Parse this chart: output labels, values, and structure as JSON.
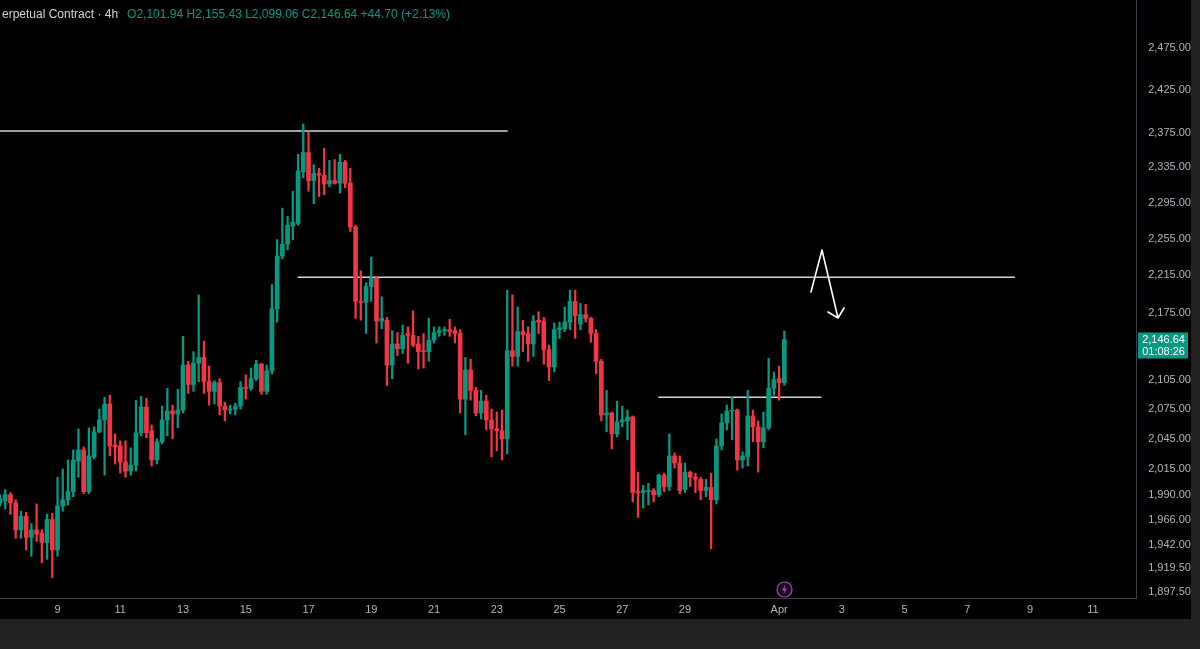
{
  "chart_data": {
    "type": "candlestick",
    "title": "erpetual Contract · 4h",
    "subtitle": "O2,101.94 H2,155.43 L2,099.06 C2,146.64 +44.70 (+2.13%)",
    "x": [
      "--03-07T04:00",
      "--03-07T08:00",
      "--03-07T12:00",
      "--03-07T16:00",
      "--03-07T20:00",
      "--03-08T00:00",
      "--03-08T04:00",
      "--03-08T08:00",
      "--03-08T12:00",
      "--03-08T16:00",
      "--03-08T20:00",
      "--03-09T00:00",
      "--03-09T04:00",
      "--03-09T08:00",
      "--03-09T12:00",
      "--03-09T16:00",
      "--03-09T20:00",
      "--03-10T00:00",
      "--03-10T04:00",
      "--03-10T08:00",
      "--03-10T12:00",
      "--03-10T16:00",
      "--03-10T20:00",
      "--03-11T00:00",
      "--03-11T04:00",
      "--03-11T08:00",
      "--03-11T12:00",
      "--03-11T16:00",
      "--03-11T20:00",
      "--03-12T00:00",
      "--03-12T04:00",
      "--03-12T08:00",
      "--03-12T12:00",
      "--03-12T16:00",
      "--03-12T20:00",
      "--03-13T00:00",
      "--03-13T04:00",
      "--03-13T08:00",
      "--03-13T12:00",
      "--03-13T16:00",
      "--03-13T20:00",
      "--03-14T00:00",
      "--03-14T04:00",
      "--03-14T08:00",
      "--03-14T12:00",
      "--03-14T16:00",
      "--03-14T20:00",
      "--03-15T00:00",
      "--03-15T04:00",
      "--03-15T08:00",
      "--03-15T12:00",
      "--03-15T16:00",
      "--03-15T20:00",
      "--03-16T00:00",
      "--03-16T04:00",
      "--03-16T08:00",
      "--03-16T12:00",
      "--03-16T16:00",
      "--03-16T20:00",
      "--03-17T00:00",
      "--03-17T04:00",
      "--03-17T08:00",
      "--03-17T12:00",
      "--03-17T16:00",
      "--03-17T20:00",
      "--03-18T00:00",
      "--03-18T04:00",
      "--03-18T08:00",
      "--03-18T12:00",
      "--03-18T16:00",
      "--03-18T20:00",
      "--03-19T00:00",
      "--03-19T04:00",
      "--03-19T08:00",
      "--03-19T12:00",
      "--03-19T16:00",
      "--03-19T20:00",
      "--03-20T00:00",
      "--03-20T04:00",
      "--03-20T08:00",
      "--03-20T12:00",
      "--03-20T16:00",
      "--03-20T20:00",
      "--03-21T00:00",
      "--03-21T04:00",
      "--03-21T08:00",
      "--03-21T12:00",
      "--03-21T16:00",
      "--03-21T20:00",
      "--03-22T00:00",
      "--03-22T04:00",
      "--03-22T08:00",
      "--03-22T12:00",
      "--03-22T16:00",
      "--03-22T20:00",
      "--03-23T00:00",
      "--03-23T04:00",
      "--03-23T08:00",
      "--03-23T12:00",
      "--03-23T16:00",
      "--03-23T20:00",
      "--03-24T00:00",
      "--03-24T04:00",
      "--03-24T08:00",
      "--03-24T12:00",
      "--03-24T16:00",
      "--03-24T20:00",
      "--03-25T00:00",
      "--03-25T04:00",
      "--03-25T08:00",
      "--03-25T12:00",
      "--03-25T16:00",
      "--03-25T20:00",
      "--03-26T00:00",
      "--03-26T04:00",
      "--03-26T08:00",
      "--03-26T12:00",
      "--03-26T16:00",
      "--03-26T20:00",
      "--03-27T00:00",
      "--03-27T04:00",
      "--03-27T08:00",
      "--03-27T12:00",
      "--03-27T16:00",
      "--03-27T20:00",
      "--03-28T00:00",
      "--03-28T04:00",
      "--03-28T08:00",
      "--03-28T12:00",
      "--03-28T16:00",
      "--03-28T20:00",
      "--03-29T00:00",
      "--03-29T04:00",
      "--03-29T08:00",
      "--03-29T12:00",
      "--03-29T16:00",
      "--03-29T20:00",
      "--03-30T00:00",
      "--03-30T04:00",
      "--03-30T08:00",
      "--03-30T12:00",
      "--03-30T16:00",
      "--03-30T20:00",
      "--03-31T00:00",
      "--03-31T04:00",
      "--03-31T08:00",
      "--03-31T12:00",
      "--03-31T16:00",
      "--03-31T20:00",
      "--04-01T00:00",
      "--04-01T04:00"
    ],
    "ohlc": [
      [
        1982,
        1990,
        1979,
        1986
      ],
      [
        1984,
        1995,
        1976,
        1990
      ],
      [
        1990,
        1992,
        1971,
        1982
      ],
      [
        1982,
        1985,
        1948,
        1956
      ],
      [
        1956,
        1974,
        1948,
        1969
      ],
      [
        1969,
        1973,
        1937,
        1949
      ],
      [
        1949,
        1962,
        1931,
        1956
      ],
      [
        1956,
        1981,
        1945,
        1952
      ],
      [
        1953,
        1956,
        1925,
        1944
      ],
      [
        1944,
        1971,
        1928,
        1966
      ],
      [
        1966,
        1972,
        1911,
        1937
      ],
      [
        1937,
        2007,
        1931,
        1979
      ],
      [
        1979,
        2015,
        1974,
        1985
      ],
      [
        1985,
        2024,
        1980,
        1993
      ],
      [
        1993,
        2034,
        1988,
        2024
      ],
      [
        2023,
        2055,
        2007,
        2034
      ],
      [
        2034,
        2037,
        1991,
        1993
      ],
      [
        1993,
        2056,
        1991,
        2028
      ],
      [
        2027,
        2057,
        2025,
        2052
      ],
      [
        2052,
        2075,
        2051,
        2064
      ],
      [
        2064,
        2087,
        2009,
        2080
      ],
      [
        2080,
        2089,
        2028,
        2038
      ],
      [
        2039,
        2050,
        2020,
        2037
      ],
      [
        2038,
        2043,
        2011,
        2022
      ],
      [
        2022,
        2043,
        2007,
        2013
      ],
      [
        2013,
        2036,
        2009,
        2019
      ],
      [
        2019,
        2084,
        2013,
        2051
      ],
      [
        2051,
        2088,
        2048,
        2077
      ],
      [
        2077,
        2086,
        2046,
        2051
      ],
      [
        2053,
        2059,
        2018,
        2024
      ],
      [
        2024,
        2045,
        2020,
        2042
      ],
      [
        2042,
        2078,
        2040,
        2064
      ],
      [
        2064,
        2096,
        2048,
        2073
      ],
      [
        2073,
        2079,
        2045,
        2070
      ],
      [
        2070,
        2095,
        2056,
        2074
      ],
      [
        2074,
        2150,
        2071,
        2120
      ],
      [
        2120,
        2124,
        2091,
        2100
      ],
      [
        2100,
        2134,
        2093,
        2122
      ],
      [
        2122,
        2194,
        2103,
        2128
      ],
      [
        2128,
        2145,
        2091,
        2103
      ],
      [
        2103,
        2119,
        2079,
        2093
      ],
      [
        2093,
        2104,
        2080,
        2102
      ],
      [
        2102,
        2106,
        2069,
        2078
      ],
      [
        2078,
        2082,
        2063,
        2074
      ],
      [
        2074,
        2079,
        2070,
        2075
      ],
      [
        2075,
        2081,
        2069,
        2078
      ],
      [
        2078,
        2103,
        2075,
        2097
      ],
      [
        2097,
        2110,
        2085,
        2096
      ],
      [
        2096,
        2117,
        2094,
        2106
      ],
      [
        2106,
        2125,
        2104,
        2121
      ],
      [
        2121,
        2122,
        2090,
        2093
      ],
      [
        2093,
        2120,
        2090,
        2114
      ],
      [
        2114,
        2205,
        2111,
        2179
      ],
      [
        2179,
        2254,
        2165,
        2236
      ],
      [
        2236,
        2289,
        2233,
        2249
      ],
      [
        2249,
        2280,
        2243,
        2270
      ],
      [
        2269,
        2308,
        2254,
        2273
      ],
      [
        2272,
        2350,
        2270,
        2331
      ],
      [
        2330,
        2385,
        2323,
        2352
      ],
      [
        2352,
        2376,
        2308,
        2320
      ],
      [
        2320,
        2338,
        2294,
        2328
      ],
      [
        2328,
        2334,
        2302,
        2326
      ],
      [
        2326,
        2357,
        2304,
        2316
      ],
      [
        2316,
        2343,
        2313,
        2320
      ],
      [
        2320,
        2344,
        2316,
        2317
      ],
      [
        2317,
        2350,
        2306,
        2341
      ],
      [
        2341,
        2343,
        2312,
        2317
      ],
      [
        2317,
        2334,
        2263,
        2268
      ],
      [
        2268,
        2270,
        2169,
        2187
      ],
      [
        2187,
        2220,
        2167,
        2186
      ],
      [
        2186,
        2207,
        2153,
        2203
      ],
      [
        2203,
        2235,
        2187,
        2212
      ],
      [
        2212,
        2214,
        2143,
        2166
      ],
      [
        2166,
        2192,
        2158,
        2169
      ],
      [
        2167,
        2170,
        2099,
        2120
      ],
      [
        2120,
        2156,
        2106,
        2142
      ],
      [
        2142,
        2154,
        2130,
        2137
      ],
      [
        2137,
        2162,
        2132,
        2151
      ],
      [
        2153,
        2160,
        2122,
        2151
      ],
      [
        2151,
        2177,
        2139,
        2141
      ],
      [
        2142,
        2150,
        2116,
        2134
      ],
      [
        2135,
        2153,
        2117,
        2134
      ],
      [
        2134,
        2169,
        2124,
        2146
      ],
      [
        2146,
        2160,
        2143,
        2154
      ],
      [
        2154,
        2160,
        2150,
        2156
      ],
      [
        2156,
        2160,
        2151,
        2157
      ],
      [
        2157,
        2168,
        2150,
        2155
      ],
      [
        2156,
        2160,
        2143,
        2153
      ],
      [
        2153,
        2157,
        2071,
        2085
      ],
      [
        2085,
        2128,
        2049,
        2115
      ],
      [
        2115,
        2126,
        2084,
        2094
      ],
      [
        2094,
        2097,
        2068,
        2071
      ],
      [
        2071,
        2094,
        2065,
        2083
      ],
      [
        2083,
        2089,
        2054,
        2064
      ],
      [
        2064,
        2075,
        2027,
        2055
      ],
      [
        2055,
        2072,
        2033,
        2053
      ],
      [
        2053,
        2074,
        2024,
        2045
      ],
      [
        2045,
        2199,
        2030,
        2135
      ],
      [
        2135,
        2194,
        2119,
        2129
      ],
      [
        2129,
        2181,
        2119,
        2155
      ],
      [
        2155,
        2167,
        2134,
        2152
      ],
      [
        2153,
        2160,
        2124,
        2142
      ],
      [
        2142,
        2172,
        2129,
        2166
      ],
      [
        2167,
        2176,
        2153,
        2165
      ],
      [
        2166,
        2170,
        2121,
        2136
      ],
      [
        2136,
        2141,
        2104,
        2118
      ],
      [
        2118,
        2164,
        2113,
        2157
      ],
      [
        2157,
        2165,
        2148,
        2159
      ],
      [
        2158,
        2181,
        2155,
        2165
      ],
      [
        2165,
        2199,
        2157,
        2187
      ],
      [
        2187,
        2199,
        2148,
        2172
      ],
      [
        2163,
        2185,
        2157,
        2173
      ],
      [
        2173,
        2184,
        2165,
        2169
      ],
      [
        2169,
        2170,
        2144,
        2153
      ],
      [
        2153,
        2157,
        2111,
        2124
      ],
      [
        2124,
        2126,
        2063,
        2069
      ],
      [
        2069,
        2094,
        2052,
        2071
      ],
      [
        2071,
        2072,
        2035,
        2050
      ],
      [
        2050,
        2083,
        2047,
        2062
      ],
      [
        2062,
        2078,
        2057,
        2064
      ],
      [
        2063,
        2074,
        2044,
        2067
      ],
      [
        2067,
        2068,
        1983,
        1992
      ],
      [
        1993,
        2012,
        1968,
        1992
      ],
      [
        1992,
        1999,
        1977,
        1994
      ],
      [
        1993,
        2001,
        1980,
        1994
      ],
      [
        1994,
        1996,
        1983,
        1990
      ],
      [
        1990,
        2010,
        1988,
        2009
      ],
      [
        2009,
        2011,
        1993,
        1998
      ],
      [
        1998,
        2050,
        1994,
        2028
      ],
      [
        2028,
        2031,
        2016,
        2021
      ],
      [
        2021,
        2028,
        1991,
        1994
      ],
      [
        1995,
        2021,
        1992,
        2012
      ],
      [
        2012,
        2013,
        1998,
        2007
      ],
      [
        2007,
        2011,
        1992,
        2005
      ],
      [
        2005,
        2007,
        1985,
        1994
      ],
      [
        1994,
        2005,
        1988,
        1997
      ],
      [
        1997,
        2011,
        1938,
        1985
      ],
      [
        1985,
        2045,
        1981,
        2038
      ],
      [
        2038,
        2070,
        2034,
        2061
      ],
      [
        2061,
        2079,
        2054,
        2073
      ],
      [
        2073,
        2087,
        2044,
        2074
      ],
      [
        2074,
        2075,
        2014,
        2024
      ],
      [
        2024,
        2032,
        2016,
        2028
      ],
      [
        2027,
        2094,
        2018,
        2068
      ],
      [
        2068,
        2074,
        2042,
        2057
      ],
      [
        2057,
        2063,
        2012,
        2042
      ],
      [
        2042,
        2072,
        2036,
        2056
      ],
      [
        2056,
        2127,
        2054,
        2096
      ],
      [
        2096,
        2113,
        2089,
        2105
      ],
      [
        2106,
        2119,
        2084,
        2101.94
      ],
      [
        2101.94,
        2155.43,
        2099.06,
        2146.64
      ]
    ],
    "colors": [
      "#089981",
      "#089981",
      "#f23645",
      "#f23645",
      "#089981",
      "#f23645",
      "#089981",
      "#f23645",
      "#f23645",
      "#089981",
      "#f23645",
      "#089981",
      "#089981",
      "#089981",
      "#089981",
      "#089981",
      "#f23645",
      "#089981",
      "#089981",
      "#089981",
      "#089981",
      "#f23645",
      "#f23645",
      "#f23645",
      "#f23645",
      "#089981",
      "#089981",
      "#089981",
      "#f23645",
      "#f23645",
      "#089981",
      "#089981",
      "#089981",
      "#f23645",
      "#089981",
      "#089981",
      "#f23645",
      "#089981",
      "#089981",
      "#f23645",
      "#f23645",
      "#089981",
      "#f23645",
      "#f23645",
      "#089981",
      "#089981",
      "#089981",
      "#f23645",
      "#089981",
      "#089981",
      "#f23645",
      "#089981",
      "#089981",
      "#089981",
      "#089981",
      "#089981",
      "#089981",
      "#089981",
      "#089981",
      "#f23645",
      "#089981",
      "#f23645",
      "#f23645",
      "#089981",
      "#f23645",
      "#089981",
      "#f23645",
      "#f23645",
      "#f23645",
      "#f23645",
      "#089981",
      "#089981",
      "#f23645",
      "#089981",
      "#f23645",
      "#089981",
      "#f23645",
      "#089981",
      "#f23645",
      "#f23645",
      "#f23645",
      "#f23645",
      "#089981",
      "#089981",
      "#089981",
      "#089981",
      "#f23645",
      "#f23645",
      "#f23645",
      "#089981",
      "#f23645",
      "#f23645",
      "#089981",
      "#f23645",
      "#f23645",
      "#f23645",
      "#f23645",
      "#089981",
      "#f23645",
      "#089981",
      "#f23645",
      "#f23645",
      "#089981",
      "#f23645",
      "#f23645",
      "#f23645",
      "#089981",
      "#089981",
      "#089981",
      "#089981",
      "#f23645",
      "#089981",
      "#f23645",
      "#f23645",
      "#f23645",
      "#f23645",
      "#089981",
      "#f23645",
      "#089981",
      "#089981",
      "#089981",
      "#f23645",
      "#f23645",
      "#089981",
      "#089981",
      "#f23645",
      "#089981",
      "#f23645",
      "#089981",
      "#f23645",
      "#f23645",
      "#089981",
      "#f23645",
      "#f23645",
      "#f23645",
      "#089981",
      "#f23645",
      "#089981",
      "#089981",
      "#089981",
      "#089981",
      "#f23645",
      "#089981",
      "#089981",
      "#f23645",
      "#f23645",
      "#089981",
      "#089981",
      "#089981",
      "#f23645",
      "#089981"
    ],
    "series": [
      {
        "type": "line",
        "x": [
          "--03-07T04:00",
          "--03-23T08:00"
        ],
        "values": [
          2377,
          2377
        ],
        "color": "#d1d4dc"
      },
      {
        "type": "line",
        "x": [
          "--03-16T16:00",
          "--04-08T12:00"
        ],
        "values": [
          2213,
          2213
        ],
        "color": "#d1d4dc"
      },
      {
        "type": "line",
        "x": [
          "--03-28T04:00",
          "--04-02T08:00"
        ],
        "values": [
          2087,
          2087
        ],
        "color": "#d1d4dc"
      }
    ],
    "xlim": [
      "--03-07T04:00",
      "--04-12T09:00"
    ],
    "xticks": [
      {
        "value": "--03-09",
        "label": "9"
      },
      {
        "value": "--03-11",
        "label": "11"
      },
      {
        "value": "--03-13",
        "label": "13"
      },
      {
        "value": "--03-15",
        "label": "15"
      },
      {
        "value": "--03-17",
        "label": "17"
      },
      {
        "value": "--03-19",
        "label": "19"
      },
      {
        "value": "--03-21",
        "label": "21"
      },
      {
        "value": "--03-23",
        "label": "23"
      },
      {
        "value": "--03-25",
        "label": "25"
      },
      {
        "value": "--03-27",
        "label": "27"
      },
      {
        "value": "--03-29",
        "label": "29"
      },
      {
        "value": "--04-01",
        "label": "Apr"
      },
      {
        "value": "--04-03",
        "label": "3"
      },
      {
        "value": "--04-05",
        "label": "5"
      },
      {
        "value": "--04-07",
        "label": "7"
      },
      {
        "value": "--04-09",
        "label": "9"
      },
      {
        "value": "--04-11",
        "label": "11"
      }
    ],
    "ylim": [
      1892,
      2534
    ],
    "yticks": [
      {
        "value": 1897.5,
        "label": "1,897.50"
      },
      {
        "value": 1919.5,
        "label": "1,919.50"
      },
      {
        "value": 1942,
        "label": "1,942.00"
      },
      {
        "value": 1966,
        "label": "1,966.00"
      },
      {
        "value": 1990,
        "label": "1,990.00"
      },
      {
        "value": 2015,
        "label": "2,015.00"
      },
      {
        "value": 2045,
        "label": "2,045.00"
      },
      {
        "value": 2075,
        "label": "2,075.00"
      },
      {
        "value": 2105,
        "label": "2,105.00"
      },
      {
        "value": 2175,
        "label": "2,175.00"
      },
      {
        "value": 2215,
        "label": "2,215.00"
      },
      {
        "value": 2255,
        "label": "2,255.00"
      },
      {
        "value": 2295,
        "label": "2,295.00"
      },
      {
        "value": 2335,
        "label": "2,335.00"
      },
      {
        "value": 2375,
        "label": "2,375.00"
      },
      {
        "value": 2425,
        "label": "2,425.00"
      },
      {
        "value": 2475,
        "label": "2,475.00"
      }
    ],
    "log": "y",
    "marker": "none",
    "line_style": "solid",
    "annotations": [
      "2,146.64",
      "01:08:26"
    ]
  }
}
